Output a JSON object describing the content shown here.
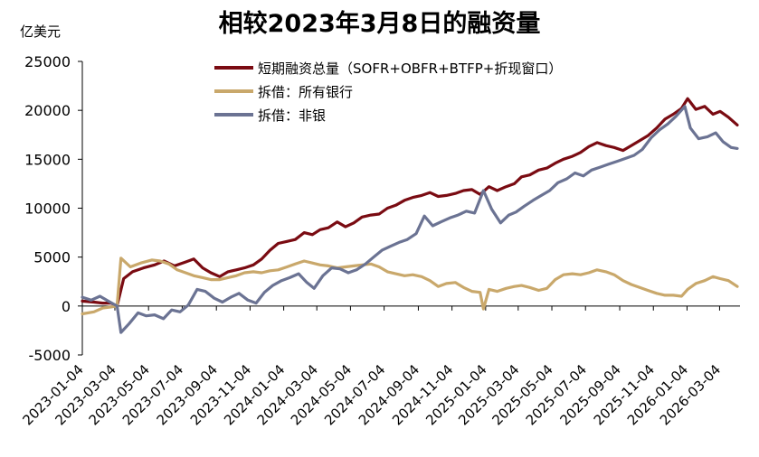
{
  "chart_data": {
    "type": "line",
    "title": "相较2023年3月8日的融资量",
    "unit_label": "亿美元",
    "ylim": [
      -5000,
      25000
    ],
    "y_ticks": [
      "25000",
      "20000",
      "15000",
      "10000",
      "5000",
      "0",
      "-5000"
    ],
    "x_ticks": [
      "2023-01-04",
      "2023-03-04",
      "2023-05-04",
      "2023-07-04",
      "2023-09-04",
      "2023-11-04",
      "2024-01-04",
      "2024-03-04",
      "2024-05-04",
      "2024-07-04",
      "2024-09-04",
      "2024-11-04",
      "2025-01-04",
      "2025-03-04",
      "2025-05-04",
      "2025-07-04",
      "2025-09-04",
      "2025-11-04",
      "2026-01-04",
      "2026-03-04"
    ],
    "x_range": [
      "2023-01-04",
      "2026-04-10"
    ],
    "legend_position": "top",
    "grid": false,
    "series": [
      {
        "name": "短期融资总量（SOFR+OBFR+BTFP+折现窗口）",
        "color": "#7a0b12",
        "points": [
          [
            "2023-01-04",
            500
          ],
          [
            "2023-01-25",
            400
          ],
          [
            "2023-02-10",
            300
          ],
          [
            "2023-02-25",
            300
          ],
          [
            "2023-03-08",
            0
          ],
          [
            "2023-03-20",
            2800
          ],
          [
            "2023-04-05",
            3500
          ],
          [
            "2023-04-25",
            3900
          ],
          [
            "2023-05-15",
            4200
          ],
          [
            "2023-06-01",
            4600
          ],
          [
            "2023-06-20",
            4100
          ],
          [
            "2023-07-10",
            4500
          ],
          [
            "2023-07-25",
            4800
          ],
          [
            "2023-08-10",
            3900
          ],
          [
            "2023-08-25",
            3400
          ],
          [
            "2023-09-10",
            3000
          ],
          [
            "2023-09-25",
            3500
          ],
          [
            "2023-10-10",
            3700
          ],
          [
            "2023-10-25",
            3900
          ],
          [
            "2023-11-10",
            4200
          ],
          [
            "2023-11-25",
            4800
          ],
          [
            "2023-12-10",
            5700
          ],
          [
            "2023-12-25",
            6400
          ],
          [
            "2024-01-10",
            6600
          ],
          [
            "2024-01-25",
            6800
          ],
          [
            "2024-02-10",
            7500
          ],
          [
            "2024-02-25",
            7300
          ],
          [
            "2024-03-10",
            7800
          ],
          [
            "2024-03-25",
            8000
          ],
          [
            "2024-04-10",
            8600
          ],
          [
            "2024-04-25",
            8100
          ],
          [
            "2024-05-10",
            8500
          ],
          [
            "2024-05-25",
            9100
          ],
          [
            "2024-06-10",
            9300
          ],
          [
            "2024-06-25",
            9400
          ],
          [
            "2024-07-10",
            10000
          ],
          [
            "2024-07-25",
            10300
          ],
          [
            "2024-08-10",
            10800
          ],
          [
            "2024-08-25",
            11100
          ],
          [
            "2024-09-10",
            11300
          ],
          [
            "2024-09-25",
            11600
          ],
          [
            "2024-10-10",
            11200
          ],
          [
            "2024-10-25",
            11300
          ],
          [
            "2024-11-10",
            11500
          ],
          [
            "2024-11-25",
            11800
          ],
          [
            "2024-12-10",
            11900
          ],
          [
            "2024-12-25",
            11400
          ],
          [
            "2025-01-10",
            12200
          ],
          [
            "2025-01-25",
            11800
          ],
          [
            "2025-02-10",
            12200
          ],
          [
            "2025-02-25",
            12500
          ],
          [
            "2025-03-10",
            13200
          ],
          [
            "2025-03-25",
            13400
          ],
          [
            "2025-04-10",
            13900
          ],
          [
            "2025-04-25",
            14100
          ],
          [
            "2025-05-10",
            14600
          ],
          [
            "2025-05-25",
            15000
          ],
          [
            "2025-06-10",
            15300
          ],
          [
            "2025-06-25",
            15700
          ],
          [
            "2025-07-10",
            16300
          ],
          [
            "2025-07-25",
            16700
          ],
          [
            "2025-08-10",
            16400
          ],
          [
            "2025-08-25",
            16200
          ],
          [
            "2025-09-10",
            15900
          ],
          [
            "2025-09-25",
            16400
          ],
          [
            "2025-10-10",
            16900
          ],
          [
            "2025-10-25",
            17400
          ],
          [
            "2025-11-10",
            18200
          ],
          [
            "2025-11-25",
            19100
          ],
          [
            "2025-12-10",
            19600
          ],
          [
            "2025-12-25",
            20200
          ],
          [
            "2026-01-05",
            21200
          ],
          [
            "2026-01-20",
            20100
          ],
          [
            "2026-02-05",
            20400
          ],
          [
            "2026-02-20",
            19600
          ],
          [
            "2026-03-05",
            19900
          ],
          [
            "2026-03-20",
            19300
          ],
          [
            "2026-04-05",
            18500
          ]
        ]
      },
      {
        "name": "拆借：所有银行",
        "color": "#c9a86b",
        "points": [
          [
            "2023-01-04",
            -800
          ],
          [
            "2023-01-25",
            -600
          ],
          [
            "2023-02-10",
            -200
          ],
          [
            "2023-02-25",
            -100
          ],
          [
            "2023-03-08",
            0
          ],
          [
            "2023-03-15",
            4900
          ],
          [
            "2023-04-01",
            4000
          ],
          [
            "2023-04-20",
            4400
          ],
          [
            "2023-05-10",
            4700
          ],
          [
            "2023-05-25",
            4600
          ],
          [
            "2023-06-10",
            4300
          ],
          [
            "2023-06-25",
            3700
          ],
          [
            "2023-07-10",
            3400
          ],
          [
            "2023-07-25",
            3100
          ],
          [
            "2023-08-10",
            2900
          ],
          [
            "2023-08-25",
            2700
          ],
          [
            "2023-09-10",
            2700
          ],
          [
            "2023-09-25",
            2900
          ],
          [
            "2023-10-10",
            3100
          ],
          [
            "2023-10-25",
            3400
          ],
          [
            "2023-11-10",
            3500
          ],
          [
            "2023-11-25",
            3400
          ],
          [
            "2023-12-10",
            3600
          ],
          [
            "2023-12-25",
            3700
          ],
          [
            "2024-01-10",
            4000
          ],
          [
            "2024-01-25",
            4300
          ],
          [
            "2024-02-10",
            4600
          ],
          [
            "2024-02-25",
            4400
          ],
          [
            "2024-03-10",
            4200
          ],
          [
            "2024-03-25",
            4100
          ],
          [
            "2024-04-10",
            3900
          ],
          [
            "2024-04-25",
            4000
          ],
          [
            "2024-05-10",
            4100
          ],
          [
            "2024-05-25",
            4200
          ],
          [
            "2024-06-10",
            4300
          ],
          [
            "2024-06-25",
            4000
          ],
          [
            "2024-07-10",
            3500
          ],
          [
            "2024-07-25",
            3300
          ],
          [
            "2024-08-10",
            3100
          ],
          [
            "2024-08-25",
            3200
          ],
          [
            "2024-09-10",
            3000
          ],
          [
            "2024-09-25",
            2600
          ],
          [
            "2024-10-10",
            2000
          ],
          [
            "2024-10-25",
            2300
          ],
          [
            "2024-11-10",
            2400
          ],
          [
            "2024-11-25",
            1900
          ],
          [
            "2024-12-10",
            1500
          ],
          [
            "2024-12-25",
            1400
          ],
          [
            "2024-12-31",
            -300
          ],
          [
            "2025-01-10",
            1700
          ],
          [
            "2025-01-25",
            1500
          ],
          [
            "2025-02-10",
            1800
          ],
          [
            "2025-02-25",
            2000
          ],
          [
            "2025-03-10",
            2100
          ],
          [
            "2025-03-25",
            1900
          ],
          [
            "2025-04-10",
            1600
          ],
          [
            "2025-04-25",
            1800
          ],
          [
            "2025-05-10",
            2700
          ],
          [
            "2025-05-25",
            3200
          ],
          [
            "2025-06-10",
            3300
          ],
          [
            "2025-06-25",
            3200
          ],
          [
            "2025-07-10",
            3400
          ],
          [
            "2025-07-25",
            3700
          ],
          [
            "2025-08-10",
            3500
          ],
          [
            "2025-08-25",
            3200
          ],
          [
            "2025-09-10",
            2600
          ],
          [
            "2025-09-25",
            2200
          ],
          [
            "2025-10-10",
            1900
          ],
          [
            "2025-10-25",
            1600
          ],
          [
            "2025-11-10",
            1300
          ],
          [
            "2025-11-25",
            1100
          ],
          [
            "2025-12-10",
            1100
          ],
          [
            "2025-12-25",
            1000
          ],
          [
            "2026-01-05",
            1700
          ],
          [
            "2026-01-20",
            2300
          ],
          [
            "2026-02-05",
            2600
          ],
          [
            "2026-02-20",
            3000
          ],
          [
            "2026-03-05",
            2800
          ],
          [
            "2026-03-20",
            2600
          ],
          [
            "2026-04-05",
            2000
          ]
        ]
      },
      {
        "name": "拆借：非银",
        "color": "#6b7393",
        "points": [
          [
            "2023-01-04",
            900
          ],
          [
            "2023-01-20",
            600
          ],
          [
            "2023-02-05",
            1000
          ],
          [
            "2023-02-20",
            500
          ],
          [
            "2023-03-08",
            0
          ],
          [
            "2023-03-15",
            -2700
          ],
          [
            "2023-03-30",
            -1800
          ],
          [
            "2023-04-15",
            -700
          ],
          [
            "2023-04-30",
            -1000
          ],
          [
            "2023-05-15",
            -900
          ],
          [
            "2023-05-31",
            -1300
          ],
          [
            "2023-06-15",
            -400
          ],
          [
            "2023-06-30",
            -600
          ],
          [
            "2023-07-15",
            100
          ],
          [
            "2023-07-31",
            1700
          ],
          [
            "2023-08-15",
            1500
          ],
          [
            "2023-08-31",
            800
          ],
          [
            "2023-09-15",
            400
          ],
          [
            "2023-09-30",
            900
          ],
          [
            "2023-10-15",
            1300
          ],
          [
            "2023-10-31",
            600
          ],
          [
            "2023-11-15",
            300
          ],
          [
            "2023-11-30",
            1400
          ],
          [
            "2023-12-15",
            2100
          ],
          [
            "2023-12-31",
            2600
          ],
          [
            "2024-01-15",
            2900
          ],
          [
            "2024-01-31",
            3300
          ],
          [
            "2024-02-15",
            2400
          ],
          [
            "2024-02-28",
            1800
          ],
          [
            "2024-03-15",
            3100
          ],
          [
            "2024-03-31",
            3900
          ],
          [
            "2024-04-15",
            3800
          ],
          [
            "2024-04-30",
            3400
          ],
          [
            "2024-05-15",
            3700
          ],
          [
            "2024-05-31",
            4300
          ],
          [
            "2024-06-15",
            5000
          ],
          [
            "2024-06-30",
            5700
          ],
          [
            "2024-07-15",
            6100
          ],
          [
            "2024-07-31",
            6500
          ],
          [
            "2024-08-15",
            6800
          ],
          [
            "2024-08-31",
            7400
          ],
          [
            "2024-09-15",
            9200
          ],
          [
            "2024-09-30",
            8200
          ],
          [
            "2024-10-15",
            8600
          ],
          [
            "2024-10-31",
            9000
          ],
          [
            "2024-11-15",
            9300
          ],
          [
            "2024-11-30",
            9700
          ],
          [
            "2024-12-15",
            9500
          ],
          [
            "2024-12-31",
            11800
          ],
          [
            "2025-01-15",
            9900
          ],
          [
            "2025-01-31",
            8500
          ],
          [
            "2025-02-15",
            9300
          ],
          [
            "2025-02-28",
            9600
          ],
          [
            "2025-03-15",
            10200
          ],
          [
            "2025-03-31",
            10800
          ],
          [
            "2025-04-15",
            11300
          ],
          [
            "2025-04-30",
            11800
          ],
          [
            "2025-05-15",
            12600
          ],
          [
            "2025-05-31",
            13000
          ],
          [
            "2025-06-15",
            13600
          ],
          [
            "2025-06-30",
            13300
          ],
          [
            "2025-07-15",
            13900
          ],
          [
            "2025-07-31",
            14200
          ],
          [
            "2025-08-15",
            14500
          ],
          [
            "2025-08-31",
            14800
          ],
          [
            "2025-09-15",
            15100
          ],
          [
            "2025-09-30",
            15400
          ],
          [
            "2025-10-15",
            16000
          ],
          [
            "2025-10-31",
            17200
          ],
          [
            "2025-11-15",
            18000
          ],
          [
            "2025-11-30",
            18600
          ],
          [
            "2025-12-15",
            19400
          ],
          [
            "2025-12-31",
            20400
          ],
          [
            "2026-01-10",
            18200
          ],
          [
            "2026-01-25",
            17100
          ],
          [
            "2026-02-10",
            17300
          ],
          [
            "2026-02-25",
            17700
          ],
          [
            "2026-03-10",
            16800
          ],
          [
            "2026-03-25",
            16200
          ],
          [
            "2026-04-05",
            16100
          ]
        ]
      }
    ]
  }
}
